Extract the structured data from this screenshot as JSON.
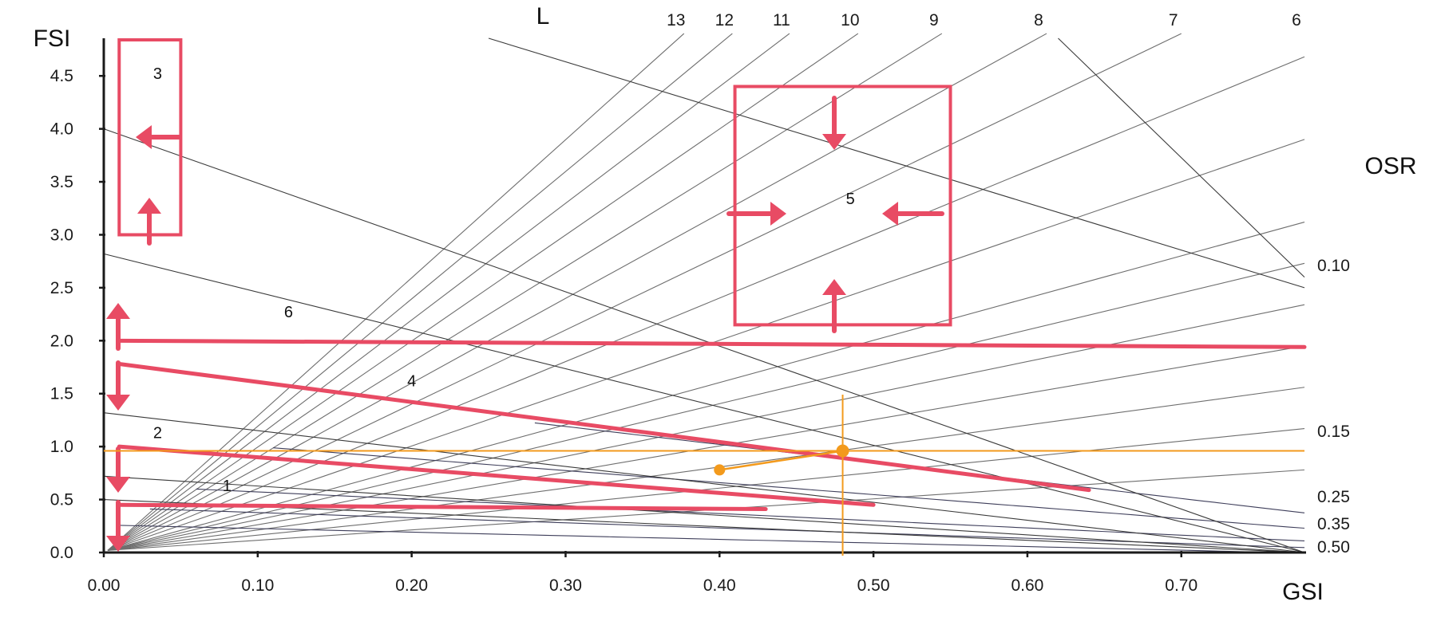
{
  "chart_data": {
    "type": "line",
    "title": "",
    "xlabel": "GSI",
    "ylabel": "FSI",
    "xlim": [
      0,
      0.78
    ],
    "ylim": [
      0,
      4.75
    ],
    "x_ticks": [
      "0.00",
      "0.10",
      "0.20",
      "0.30",
      "0.40",
      "0.50",
      "0.60",
      "0.70"
    ],
    "x_tick_values": [
      0,
      0.1,
      0.2,
      0.3,
      0.4,
      0.5,
      0.6,
      0.7
    ],
    "y_ticks": [
      "0.0",
      "0.5",
      "1.0",
      "1.5",
      "2.0",
      "2.5",
      "3.0",
      "3.5",
      "4.0",
      "4.5"
    ],
    "y_tick_values": [
      0,
      0.5,
      1,
      1.5,
      2,
      2.5,
      3,
      3.5,
      4,
      4.5
    ],
    "grid": false,
    "layer_label": "L",
    "layer_lines": [
      {
        "label": "13",
        "value": 13
      },
      {
        "label": "12",
        "value": 12
      },
      {
        "label": "11",
        "value": 11
      },
      {
        "label": "10",
        "value": 10
      },
      {
        "label": "9",
        "value": 9
      },
      {
        "label": "8",
        "value": 8
      },
      {
        "label": "7",
        "value": 7
      },
      {
        "label": "6",
        "value": 6
      },
      {
        "label": "",
        "value": 5
      },
      {
        "label": "",
        "value": 4
      },
      {
        "label": "",
        "value": 3.5
      },
      {
        "label": "",
        "value": 3
      },
      {
        "label": "",
        "value": 2.5
      },
      {
        "label": "",
        "value": 2
      },
      {
        "label": "",
        "value": 1.5
      },
      {
        "label": "",
        "value": 1
      }
    ],
    "osr_label": "OSR",
    "osr_curves": [
      {
        "label": "0.10",
        "value": 0.1
      },
      {
        "label": "0.15",
        "value": 0.15
      },
      {
        "label": "0.25",
        "value": 0.25
      },
      {
        "label": "0.35",
        "value": 0.35
      },
      {
        "label": "0.50",
        "value": 0.5
      }
    ],
    "extra_lines": [
      {
        "x": [
          0.0,
          0.78
        ],
        "y": [
          4.0,
          0.0
        ]
      },
      {
        "x": [
          0.0,
          0.78
        ],
        "y": [
          2.82,
          0.0
        ]
      },
      {
        "x": [
          0.0,
          0.78
        ],
        "y": [
          1.32,
          0.0
        ]
      },
      {
        "x": [
          0.0,
          0.78
        ],
        "y": [
          0.72,
          0.0
        ]
      },
      {
        "x": [
          0.0,
          0.78
        ],
        "y": [
          0.5,
          0.0
        ]
      },
      {
        "x": [
          0.25,
          0.78
        ],
        "y": [
          5.0,
          2.5
        ]
      },
      {
        "x": [
          0.62,
          0.78
        ],
        "y": [
          5.0,
          2.6
        ]
      }
    ],
    "highlight_lines": [
      {
        "name": "6",
        "x": [
          0.01,
          0.78
        ],
        "y": [
          2.0,
          1.94
        ]
      },
      {
        "name": "4",
        "x": [
          0.01,
          0.64
        ],
        "y": [
          1.78,
          0.59
        ]
      },
      {
        "name": "2",
        "x": [
          0.01,
          0.5
        ],
        "y": [
          1.0,
          0.45
        ]
      },
      {
        "name": "1",
        "x": [
          0.01,
          0.43
        ],
        "y": [
          0.45,
          0.41
        ]
      }
    ],
    "annotation_labels": [
      {
        "text": "1",
        "x": 0.08,
        "y": 0.58
      },
      {
        "text": "2",
        "x": 0.035,
        "y": 1.08
      },
      {
        "text": "3",
        "x": 0.035,
        "y": 4.47
      },
      {
        "text": "4",
        "x": 0.2,
        "y": 1.57
      },
      {
        "text": "5",
        "x": 0.485,
        "y": 3.29
      },
      {
        "text": "6",
        "x": 0.12,
        "y": 2.22
      }
    ],
    "highlight_boxes": [
      {
        "name": "3",
        "x": [
          0.01,
          0.05
        ],
        "y": [
          3.0,
          4.9
        ]
      },
      {
        "name": "5",
        "x": [
          0.41,
          0.55
        ],
        "y": [
          2.15,
          4.4
        ]
      }
    ],
    "point_a": {
      "x": 0.4,
      "y": 0.78
    },
    "point_b": {
      "x": 0.48,
      "y": 0.96
    },
    "reference_x": 0.48,
    "reference_y": 0.96,
    "colors": {
      "highlight": "#e84b64",
      "orange": "#f39a1c",
      "axis": "#1a1a1a",
      "grid_line": "#7c7c7c"
    }
  }
}
